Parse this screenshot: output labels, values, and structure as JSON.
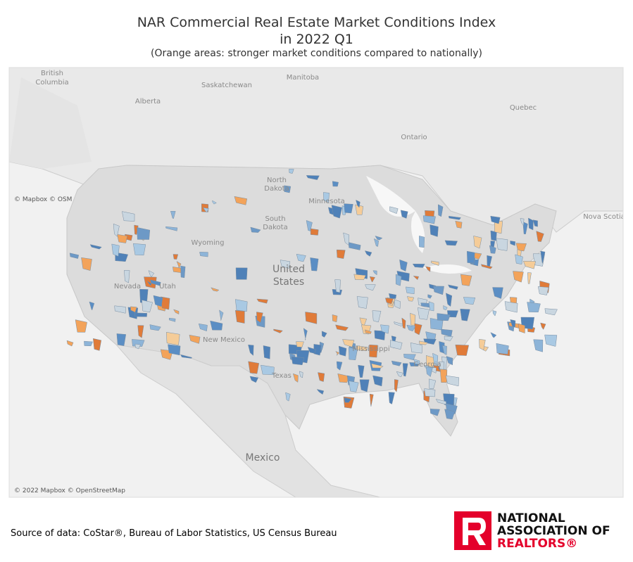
{
  "header": {
    "title": [
      "NAR Commercial Real Estate Market Conditions Index",
      "in 2022 Q1"
    ],
    "subtitle": "(Orange areas:  stronger market conditions compared to nationally)"
  },
  "map": {
    "labels": {
      "british_columbia": [
        "British",
        "Columbia"
      ],
      "alberta": "Alberta",
      "saskatchewan": "Saskatchewan",
      "manitoba": "Manitoba",
      "ontario": "Ontario",
      "quebec": "Quebec",
      "nova_scotia": "Nova Scotia",
      "north_dakota": [
        "North",
        "Dakota"
      ],
      "south_dakota": [
        "South",
        "Dakota"
      ],
      "minnesota": "Minnesota",
      "wyoming": "Wyoming",
      "nevada": "Nevada",
      "utah": "Utah",
      "new_mexico": "New Mexico",
      "texas": "Texas",
      "mississippi": "Mississippi",
      "georgia": "Georgia",
      "united_states": [
        "United",
        "States"
      ],
      "mexico": "Mexico"
    },
    "attribution_top": "© Mapbox © OSM",
    "attribution_bottom": "© 2022 Mapbox © OpenStreetMap"
  },
  "footer": {
    "source": "Source of data: CoStar®, Bureau of Labor Statistics, US Census Bureau",
    "logo": [
      "NATIONAL",
      "ASSOCIATION OF",
      "REALTORS®"
    ]
  }
}
